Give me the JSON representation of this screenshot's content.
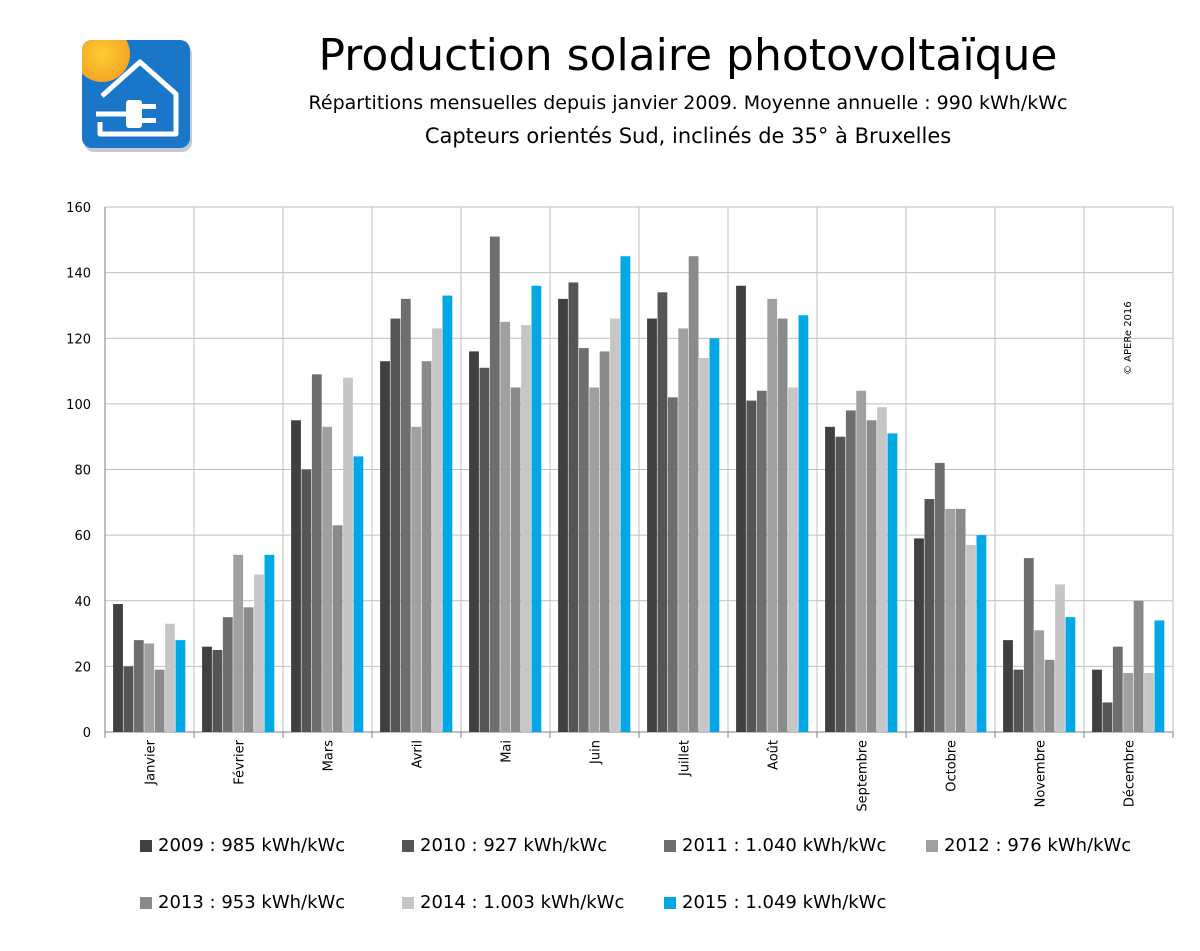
{
  "header": {
    "title": "Production solaire photovoltaïque",
    "subtitle": "Répartitions mensuelles depuis janvier 2009. Moyenne annuelle : 990 kWh/kWc",
    "subtitle2": "Capteurs orientés Sud, inclinés de 35° à Bruxelles"
  },
  "logo": {
    "icon": "solar-house-plug-icon"
  },
  "copyright": "© APERe 2016",
  "colors": {
    "2009": "#404040",
    "2010": "#555555",
    "2011": "#6e6e6e",
    "2012": "#a0a0a0",
    "2013": "#8a8a8a",
    "2014": "#c6c6c6",
    "2015": "#00a8e6"
  },
  "chart_data": {
    "type": "bar",
    "title": "",
    "xlabel": "",
    "ylabel": "",
    "ylim": [
      0,
      160
    ],
    "yticks": [
      "0",
      "20",
      "40",
      "60",
      "80",
      "100",
      "120",
      "140",
      "160"
    ],
    "grid": true,
    "legend_position": "bottom",
    "categories": [
      "Janvier",
      "Février",
      "Mars",
      "Avril",
      "Mai",
      "Juin",
      "Juillet",
      "Août",
      "Septembre",
      "Octobre",
      "Novembre",
      "Décembre"
    ],
    "series": [
      {
        "name": "2009 : 985 kWh/kWc",
        "values": [
          39,
          26,
          95,
          113,
          116,
          132,
          126,
          136,
          93,
          59,
          28,
          19
        ]
      },
      {
        "name": "2010 : 927 kWh/kWc",
        "values": [
          20,
          25,
          80,
          126,
          111,
          137,
          134,
          101,
          90,
          71,
          19,
          9
        ]
      },
      {
        "name": "2011 : 1.040 kWh/kWc",
        "values": [
          28,
          35,
          109,
          132,
          151,
          117,
          102,
          104,
          98,
          82,
          53,
          26
        ]
      },
      {
        "name": "2012 : 976 kWh/kWc",
        "values": [
          27,
          54,
          93,
          93,
          125,
          105,
          123,
          132,
          104,
          68,
          31,
          18
        ]
      },
      {
        "name": "2013 : 953 kWh/kWc",
        "values": [
          19,
          38,
          63,
          113,
          105,
          116,
          145,
          126,
          95,
          68,
          22,
          40
        ]
      },
      {
        "name": "2014 : 1.003 kWh/kWc",
        "values": [
          33,
          48,
          108,
          123,
          124,
          126,
          114,
          105,
          99,
          57,
          45,
          18
        ]
      },
      {
        "name": "2015 : 1.049 kWh/kWc",
        "values": [
          28,
          54,
          84,
          133,
          136,
          145,
          120,
          127,
          91,
          60,
          35,
          34
        ]
      }
    ]
  }
}
